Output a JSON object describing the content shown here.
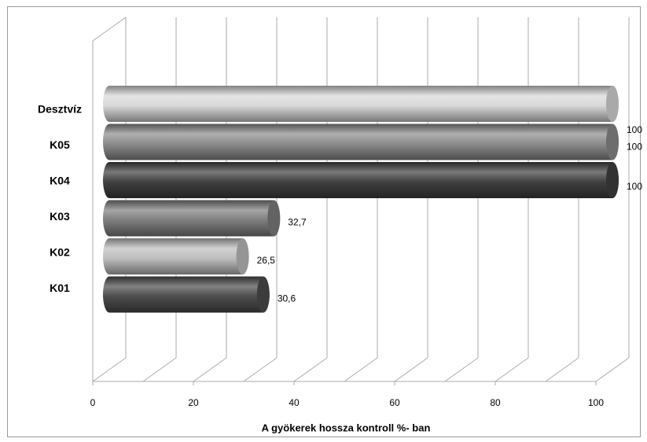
{
  "chart_data": {
    "type": "bar",
    "orientation": "horizontal",
    "style": "3d-cylinder",
    "categories": [
      "Desztvíz",
      "K05",
      "K04",
      "K03",
      "K02",
      "K01"
    ],
    "values": [
      100,
      100,
      100,
      32.7,
      26.5,
      30.6
    ],
    "data_labels": [
      "100",
      "100",
      "100",
      "32,7",
      "26,5",
      "30,6"
    ],
    "xlabel": "A gyökerek hossza kontroll %- ban",
    "xlim": [
      0,
      100
    ],
    "x_ticks": [
      0,
      20,
      40,
      60,
      80,
      100
    ],
    "grid": true,
    "colors": [
      "#d9d9d9",
      "#8c8c8c",
      "#404040",
      "#7f7f7f",
      "#bfbfbf",
      "#4d4d4d"
    ]
  }
}
